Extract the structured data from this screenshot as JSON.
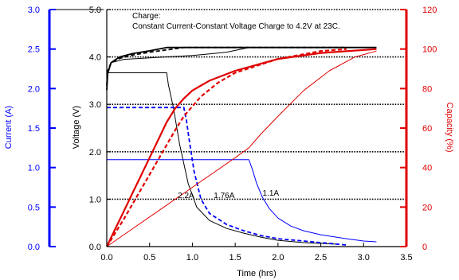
{
  "colors": {
    "current_axis": "#0000ff",
    "capacity_axis": "#e00000",
    "voltage_axis": "#000000",
    "grid": "#000000"
  },
  "chart_data": {
    "type": "line",
    "title": "",
    "annotation": {
      "line1": "Charge:",
      "line2": "Constant Current-Constant Voltage Charge to 4.2V at 23C."
    },
    "xlabel": "Time (hrs)",
    "xlim": [
      0,
      3.5
    ],
    "xticks": [
      "0.0",
      "0.5",
      "1.0",
      "1.5",
      "2.0",
      "2.5",
      "3.0",
      "3.5"
    ],
    "y_voltage": {
      "label": "Voltage (V)",
      "lim": [
        0,
        5
      ],
      "ticks": [
        "0.0",
        "1.0",
        "2.0",
        "3.0",
        "4.0",
        "5.0"
      ]
    },
    "y_current": {
      "label": "Current (A)",
      "lim": [
        0,
        3
      ],
      "ticks": [
        "0.0",
        "0.5",
        "1.0",
        "1.5",
        "2.0",
        "2.5",
        "3.0"
      ]
    },
    "y_capacity": {
      "label": "Capacity (%)",
      "lim": [
        0,
        120
      ],
      "ticks": [
        "0",
        "20",
        "40",
        "60",
        "80",
        "100",
        "120"
      ]
    },
    "grid": "horizontal dotted",
    "series_labels": [
      {
        "text": "2.2A",
        "x": 0.83,
        "y": 1.02
      },
      {
        "text": "1.76A",
        "x": 1.25,
        "y": 1.02
      },
      {
        "text": "1.1A",
        "x": 1.82,
        "y": 1.07
      }
    ],
    "series": [
      {
        "name": "2.2A",
        "quantity": "voltage",
        "axis": "voltage",
        "color": "#000000",
        "dash": "solid",
        "width": 1.8,
        "x": [
          0,
          0.01,
          0.05,
          0.15,
          0.3,
          0.5,
          0.7,
          0.75,
          1.0,
          1.5,
          2.0,
          2.5,
          3.0,
          3.15
        ],
        "y": [
          3.3,
          3.65,
          3.88,
          4.0,
          4.07,
          4.13,
          4.2,
          4.2,
          4.2,
          4.2,
          4.2,
          4.2,
          4.2,
          4.2
        ]
      },
      {
        "name": "1.76A",
        "quantity": "voltage",
        "axis": "voltage",
        "color": "#000000",
        "dash": "dash",
        "width": 1.8,
        "x": [
          0,
          0.01,
          0.05,
          0.15,
          0.3,
          0.5,
          0.7,
          0.9,
          1.0,
          1.5,
          2.0,
          2.5,
          2.8
        ],
        "y": [
          3.4,
          3.7,
          3.88,
          3.97,
          4.04,
          4.1,
          4.15,
          4.2,
          4.2,
          4.2,
          4.2,
          4.2,
          4.2
        ]
      },
      {
        "name": "1.1A",
        "quantity": "voltage",
        "axis": "voltage",
        "color": "#000000",
        "dash": "solid",
        "width": 1.0,
        "x": [
          0,
          0.01,
          0.05,
          0.2,
          0.5,
          1.0,
          1.4,
          1.66,
          1.8,
          2.0,
          2.5,
          3.0,
          3.15
        ],
        "y": [
          3.4,
          3.7,
          3.88,
          3.95,
          3.98,
          4.03,
          4.1,
          4.2,
          4.2,
          4.2,
          4.2,
          4.2,
          4.2
        ]
      },
      {
        "name": "2.2A",
        "quantity": "current",
        "axis": "current",
        "color": "#000000",
        "dash": "solid",
        "width": 1.0,
        "x": [
          0,
          0.7,
          0.72,
          0.78,
          0.85,
          0.95,
          1.05,
          1.2,
          1.4,
          1.6,
          1.8,
          2.0,
          2.3,
          2.7
        ],
        "y": [
          2.2,
          2.2,
          2.05,
          1.75,
          1.3,
          0.8,
          0.5,
          0.33,
          0.23,
          0.17,
          0.12,
          0.08,
          0.05,
          0.03
        ]
      },
      {
        "name": "1.76A",
        "quantity": "current",
        "axis": "current",
        "color": "#0000ff",
        "dash": "dash",
        "width": 1.8,
        "x": [
          0,
          0.9,
          0.93,
          0.97,
          1.02,
          1.1,
          1.2,
          1.4,
          1.6,
          1.8,
          2.0,
          2.3,
          2.6,
          2.8
        ],
        "y": [
          1.76,
          1.76,
          1.6,
          1.3,
          0.95,
          0.6,
          0.42,
          0.28,
          0.2,
          0.14,
          0.1,
          0.07,
          0.04,
          0.02
        ]
      },
      {
        "name": "1.1A",
        "quantity": "current",
        "axis": "current",
        "color": "#0000ff",
        "dash": "solid",
        "width": 1.0,
        "x": [
          0,
          1.66,
          1.7,
          1.75,
          1.82,
          1.9,
          2.0,
          2.15,
          2.3,
          2.5,
          2.8,
          3.0,
          3.15
        ],
        "y": [
          1.1,
          1.1,
          0.98,
          0.8,
          0.62,
          0.48,
          0.36,
          0.26,
          0.2,
          0.15,
          0.1,
          0.07,
          0.06
        ]
      },
      {
        "name": "2.2A",
        "quantity": "capacity",
        "axis": "capacity",
        "color": "#e00000",
        "dash": "solid",
        "width": 2.2,
        "x": [
          0,
          0.1,
          0.2,
          0.3,
          0.4,
          0.5,
          0.6,
          0.7,
          0.8,
          0.9,
          1.0,
          1.2,
          1.5,
          2.0,
          2.5,
          3.15
        ],
        "y": [
          0,
          9,
          18,
          27,
          36,
          45,
          54,
          63,
          70,
          75,
          79,
          84,
          89,
          95,
          98,
          100
        ]
      },
      {
        "name": "1.76A",
        "quantity": "capacity",
        "axis": "capacity",
        "color": "#e00000",
        "dash": "dash",
        "width": 2.2,
        "x": [
          0,
          0.2,
          0.4,
          0.6,
          0.8,
          0.9,
          1.0,
          1.1,
          1.3,
          1.5,
          2.0,
          2.5,
          2.8
        ],
        "y": [
          0,
          14,
          29,
          44,
          59,
          66,
          71,
          76,
          83,
          88,
          95,
          99,
          100
        ]
      },
      {
        "name": "1.1A",
        "quantity": "capacity",
        "axis": "capacity",
        "color": "#e00000",
        "dash": "solid",
        "width": 1.0,
        "x": [
          0,
          0.3,
          0.6,
          0.9,
          1.2,
          1.5,
          1.66,
          1.8,
          2.0,
          2.3,
          2.6,
          2.9,
          3.15
        ],
        "y": [
          0,
          9,
          18,
          27,
          36,
          45,
          50,
          57,
          66,
          79,
          89,
          96,
          99
        ]
      }
    ]
  }
}
